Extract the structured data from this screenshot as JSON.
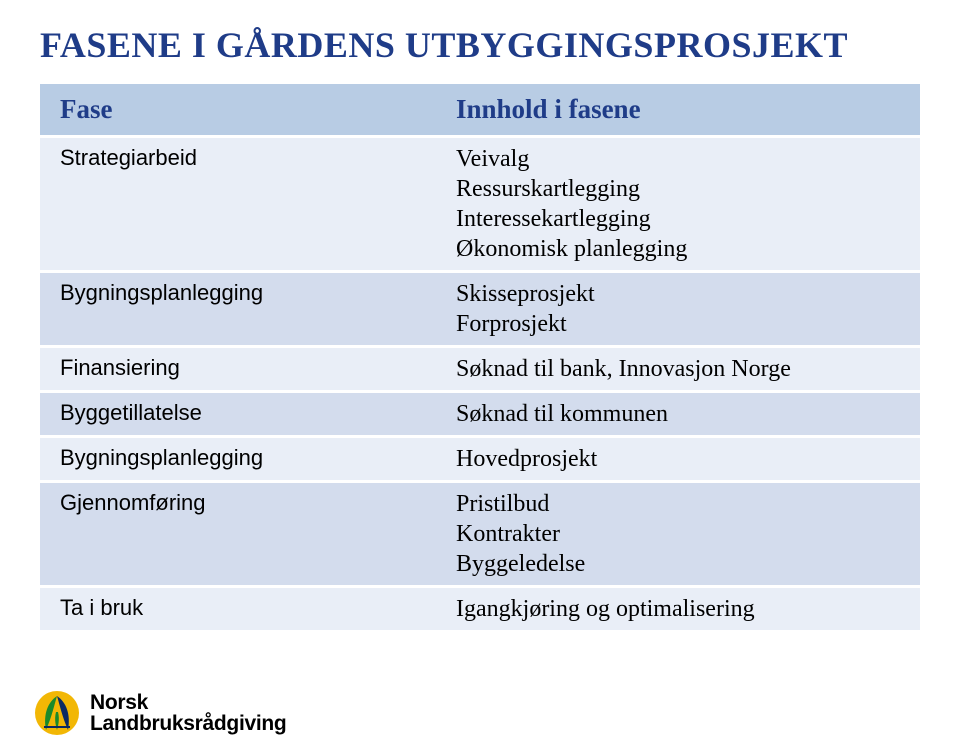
{
  "title": "FASENE I GÅRDENS UTBYGGINGSPROSJEKT",
  "colors": {
    "title_color": "#1f3c88",
    "header_bg": "#b8cce4",
    "band_a": "#e9eef7",
    "band_b": "#d3dced",
    "row_divider": "#ffffff",
    "text_color": "#000000"
  },
  "typography": {
    "title_fontsize": 36,
    "header_fontsize": 27,
    "cell_fontsize": 24,
    "label_fontsize": 22
  },
  "table": {
    "header": {
      "left": "Fase",
      "right": "Innhold i fasene"
    },
    "rows": [
      {
        "label": "Strategiarbeid",
        "content": "Veivalg\nRessurskartlegging\nInteressekartlegging\nØkonomisk planlegging"
      },
      {
        "label": "Bygningsplanlegging",
        "content": "Skisseprosjekt\nForprosjekt"
      },
      {
        "label": "Finansiering",
        "content": "Søknad til bank, Innovasjon Norge"
      },
      {
        "label": "Byggetillatelse",
        "content": "Søknad til kommunen"
      },
      {
        "label": "Bygningsplanlegging",
        "content": "Hovedprosjekt"
      },
      {
        "label": "Gjennomføring",
        "content": "Pristilbud\nKontrakter\nByggeledelse"
      },
      {
        "label": "Ta i bruk",
        "content": "Igangkjøring  og optimalisering"
      }
    ]
  },
  "logo": {
    "line1": "Norsk",
    "line2": "Landbruksrådgiving",
    "colors": {
      "yellow": "#f2b705",
      "green": "#1a8a2a",
      "navy": "#0b2a63"
    }
  }
}
